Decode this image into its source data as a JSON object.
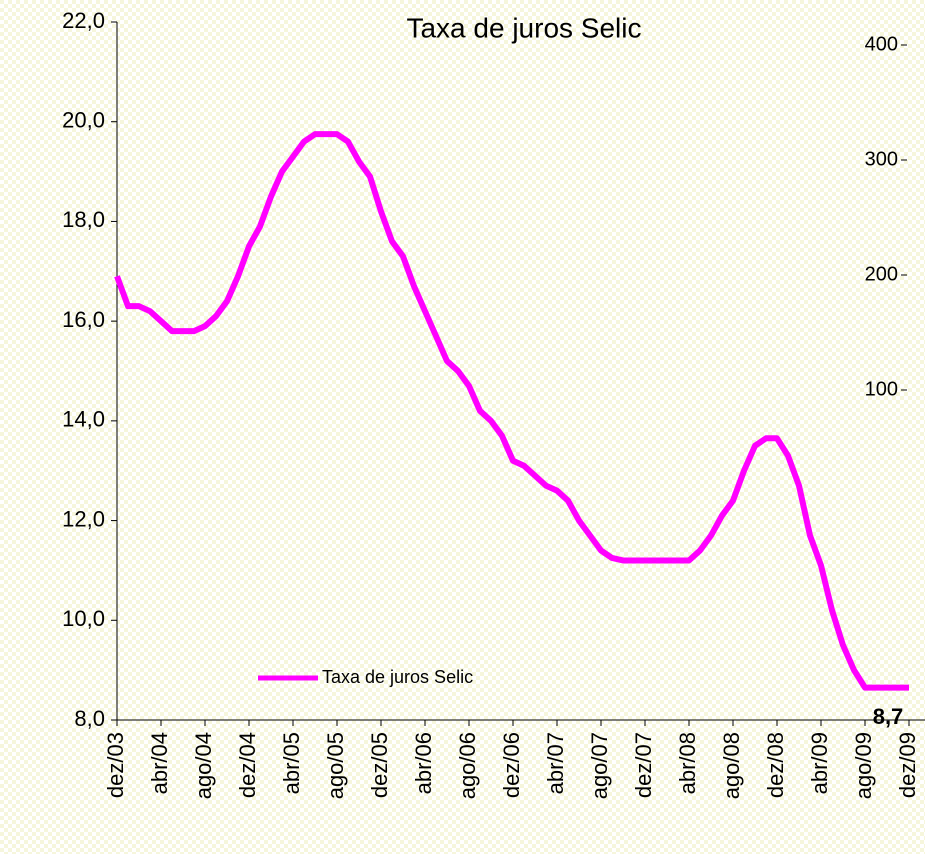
{
  "chart_data": {
    "type": "line",
    "title": "Taxa de juros Selic",
    "categories": [
      "dez/03",
      null,
      null,
      null,
      "abr/04",
      null,
      null,
      null,
      "ago/04",
      null,
      null,
      null,
      "dez/04",
      null,
      null,
      null,
      "abr/05",
      null,
      null,
      null,
      "ago/05",
      null,
      null,
      null,
      "dez/05",
      null,
      null,
      null,
      "abr/06",
      null,
      null,
      null,
      "ago/06",
      null,
      null,
      null,
      "dez/06",
      null,
      null,
      null,
      "abr/07",
      null,
      null,
      null,
      "ago/07",
      null,
      null,
      null,
      "dez/07",
      null,
      null,
      null,
      "abr/08",
      null,
      null,
      null,
      "ago/08",
      null,
      null,
      null,
      "dez/08",
      null,
      null,
      null,
      "abr/09",
      null,
      null,
      null,
      "ago/09",
      null,
      null,
      null,
      "dez/09"
    ],
    "series": [
      {
        "name": "Taxa de juros Selic",
        "color": "#ff00ff",
        "values": [
          16.9,
          16.3,
          16.3,
          16.2,
          16.0,
          15.8,
          15.8,
          15.8,
          15.9,
          16.1,
          16.4,
          16.9,
          17.5,
          17.9,
          18.5,
          19.0,
          19.3,
          19.6,
          19.75,
          19.75,
          19.75,
          19.6,
          19.2,
          18.9,
          18.2,
          17.6,
          17.3,
          16.7,
          16.2,
          15.7,
          15.2,
          15.0,
          14.7,
          14.2,
          14.0,
          13.7,
          13.2,
          13.1,
          12.9,
          12.7,
          12.6,
          12.4,
          12.0,
          11.7,
          11.4,
          11.25,
          11.2,
          11.2,
          11.2,
          11.2,
          11.2,
          11.2,
          11.2,
          11.4,
          11.7,
          12.1,
          12.4,
          13.0,
          13.5,
          13.65,
          13.65,
          13.3,
          12.7,
          11.7,
          11.1,
          10.2,
          9.5,
          9.0,
          8.65,
          8.65,
          8.65,
          8.65,
          8.65
        ]
      }
    ],
    "ylim": [
      8,
      22
    ],
    "yticks": [
      {
        "value": 8,
        "label": "8,0"
      },
      {
        "value": 10,
        "label": "10,0"
      },
      {
        "value": 12,
        "label": "12,0"
      },
      {
        "value": 14,
        "label": "14,0"
      },
      {
        "value": 16,
        "label": "16,0"
      },
      {
        "value": 18,
        "label": "18,0"
      },
      {
        "value": 20,
        "label": "20,0"
      },
      {
        "value": 22,
        "label": "22,0"
      }
    ],
    "y2lim": [
      0,
      400
    ],
    "y2ticks": [
      100,
      200,
      300,
      400
    ],
    "annotations": [
      {
        "text": "8,7"
      }
    ],
    "legend": "bottom-left"
  }
}
